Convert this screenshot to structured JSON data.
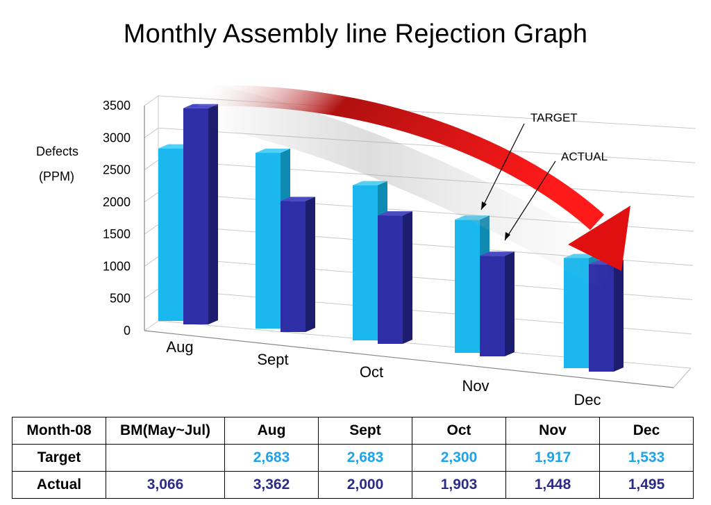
{
  "chart_data": {
    "type": "bar",
    "title": "Monthly Assembly line Rejection Graph",
    "ylabel_line1": "Defects",
    "ylabel_line2": "(PPM)",
    "ylim": [
      0,
      3500
    ],
    "yticks": [
      0,
      500,
      1000,
      1500,
      2000,
      2500,
      3000,
      3500
    ],
    "categories": [
      "Aug",
      "Sept",
      "Oct",
      "Nov",
      "Dec"
    ],
    "series": [
      {
        "name": "TARGET",
        "values": [
          2683,
          2683,
          2300,
          1917,
          1533
        ],
        "color": "#1ab8ee"
      },
      {
        "name": "ACTUAL",
        "values": [
          3362,
          2000,
          1903,
          1448,
          1495
        ],
        "color": "#2e2ea6"
      }
    ],
    "annotations": [
      "TARGET",
      "ACTUAL"
    ],
    "grid": true
  },
  "table": {
    "headers": [
      "Month-08",
      "BM(May~Jul)",
      "Aug",
      "Sept",
      "Oct",
      "Nov",
      "Dec"
    ],
    "rows": [
      {
        "label": "Target",
        "values": [
          "",
          "2,683",
          "2,683",
          "2,300",
          "1,917",
          "1,533"
        ]
      },
      {
        "label": "Actual",
        "values": [
          "3,066",
          "3,362",
          "2,000",
          "1,903",
          "1,448",
          "1,495"
        ]
      }
    ]
  },
  "colors": {
    "target": "#1fa3e8",
    "actual": "#2b2b87",
    "arrow": "#e01010"
  }
}
